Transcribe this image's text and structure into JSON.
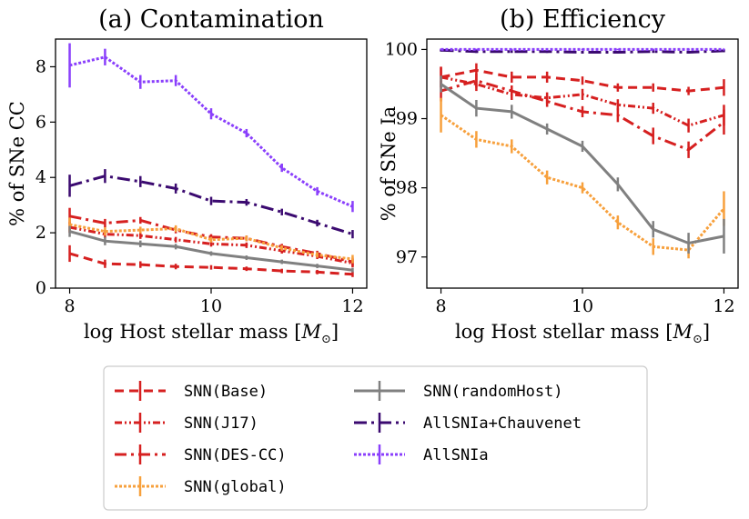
{
  "chart_data": [
    {
      "type": "line",
      "title": "(a) Contamination",
      "xlabel": "log Host stellar mass [",
      "xlabel_unit": "M",
      "xlabel_close": "]",
      "ylabel": "% of SNe CC",
      "xlim": [
        7.8,
        12.2
      ],
      "ylim": [
        0,
        9
      ],
      "xticks": [
        8,
        10,
        12
      ],
      "yticks": [
        0,
        2,
        4,
        6,
        8
      ],
      "x": [
        8,
        8.5,
        9,
        9.5,
        10,
        10.5,
        11,
        11.5,
        12
      ],
      "series": [
        {
          "name": "SNN(Base)",
          "values": [
            1.25,
            0.88,
            0.85,
            0.78,
            0.75,
            0.7,
            0.62,
            0.58,
            0.5
          ],
          "err": [
            0.3,
            0.15,
            0.12,
            0.1,
            0.08,
            0.08,
            0.08,
            0.08,
            0.1
          ]
        },
        {
          "name": "SNN(J17)",
          "values": [
            2.2,
            1.95,
            1.9,
            1.75,
            1.6,
            1.55,
            1.35,
            1.15,
            0.9
          ],
          "err": [
            0.2,
            0.15,
            0.12,
            0.1,
            0.1,
            0.1,
            0.1,
            0.1,
            0.15
          ]
        },
        {
          "name": "SNN(DES-CC)",
          "values": [
            2.6,
            2.35,
            2.45,
            2.1,
            1.85,
            1.8,
            1.5,
            1.25,
            0.95
          ],
          "err": [
            0.3,
            0.15,
            0.12,
            0.12,
            0.1,
            0.1,
            0.1,
            0.1,
            0.15
          ]
        },
        {
          "name": "SNN(global)",
          "values": [
            2.3,
            2.05,
            2.1,
            2.15,
            1.75,
            1.8,
            1.45,
            1.2,
            1.05
          ],
          "err": [
            0.25,
            0.15,
            0.12,
            0.12,
            0.1,
            0.1,
            0.1,
            0.1,
            0.15
          ]
        },
        {
          "name": "SNN(randomHost)",
          "values": [
            2.05,
            1.7,
            1.6,
            1.5,
            1.25,
            1.1,
            0.95,
            0.8,
            0.65
          ],
          "err": [
            0.2,
            0.15,
            0.12,
            0.1,
            0.08,
            0.08,
            0.08,
            0.08,
            0.08
          ]
        },
        {
          "name": "AllSNIa+Chauvenet",
          "values": [
            3.7,
            4.05,
            3.85,
            3.6,
            3.15,
            3.1,
            2.75,
            2.35,
            1.95
          ],
          "err": [
            0.4,
            0.25,
            0.2,
            0.18,
            0.15,
            0.12,
            0.12,
            0.12,
            0.15
          ]
        },
        {
          "name": "AllSNIa",
          "values": [
            8.05,
            8.35,
            7.45,
            7.5,
            6.3,
            5.6,
            4.35,
            3.5,
            2.95
          ],
          "err": [
            0.8,
            0.3,
            0.25,
            0.2,
            0.2,
            0.15,
            0.15,
            0.15,
            0.2
          ]
        }
      ]
    },
    {
      "type": "line",
      "title": "(b) Efficiency",
      "xlabel": "log Host stellar mass [",
      "xlabel_unit": "M",
      "xlabel_close": "]",
      "ylabel": "% of SNe Ia",
      "xlim": [
        7.8,
        12.2
      ],
      "ylim": [
        96.55,
        100.15
      ],
      "xticks": [
        8,
        10,
        12
      ],
      "yticks": [
        97,
        98,
        99,
        100
      ],
      "x": [
        8,
        8.5,
        9,
        9.5,
        10,
        10.5,
        11,
        11.5,
        12
      ],
      "series": [
        {
          "name": "SNN(Base)",
          "values": [
            99.6,
            99.7,
            99.6,
            99.6,
            99.55,
            99.45,
            99.45,
            99.4,
            99.45
          ],
          "err": [
            0.15,
            0.1,
            0.08,
            0.08,
            0.06,
            0.06,
            0.06,
            0.06,
            0.12
          ]
        },
        {
          "name": "SNN(J17)",
          "values": [
            99.6,
            99.5,
            99.35,
            99.3,
            99.35,
            99.2,
            99.15,
            98.9,
            99.05
          ],
          "err": [
            0.15,
            0.1,
            0.08,
            0.08,
            0.08,
            0.08,
            0.08,
            0.1,
            0.15
          ]
        },
        {
          "name": "SNN(DES-CC)",
          "values": [
            99.4,
            99.55,
            99.4,
            99.25,
            99.1,
            99.05,
            98.75,
            98.55,
            98.95
          ],
          "err": [
            0.15,
            0.1,
            0.08,
            0.08,
            0.08,
            0.1,
            0.12,
            0.12,
            0.18
          ]
        },
        {
          "name": "SNN(global)",
          "values": [
            99.05,
            98.7,
            98.6,
            98.15,
            98.0,
            97.5,
            97.15,
            97.1,
            97.7
          ],
          "err": [
            0.25,
            0.12,
            0.1,
            0.1,
            0.08,
            0.1,
            0.12,
            0.12,
            0.25
          ]
        },
        {
          "name": "SNN(randomHost)",
          "values": [
            99.5,
            99.15,
            99.1,
            98.85,
            98.6,
            98.05,
            97.4,
            97.2,
            97.3
          ],
          "err": [
            0.12,
            0.12,
            0.1,
            0.08,
            0.08,
            0.1,
            0.12,
            0.15,
            0.25
          ]
        },
        {
          "name": "AllSNIa+Chauvenet",
          "values": [
            99.99,
            99.97,
            99.97,
            99.97,
            99.96,
            99.96,
            99.97,
            99.96,
            99.98
          ],
          "err": [
            0.02,
            0.02,
            0.02,
            0.02,
            0.02,
            0.02,
            0.02,
            0.02,
            0.02
          ]
        },
        {
          "name": "AllSNIa",
          "values": [
            100.0,
            100.0,
            100.0,
            100.0,
            100.0,
            100.0,
            100.0,
            100.0,
            100.0
          ],
          "err": [
            0.01,
            0.01,
            0.01,
            0.01,
            0.01,
            0.01,
            0.01,
            0.01,
            0.01
          ]
        }
      ]
    }
  ],
  "legend": {
    "placement": "bottom-center",
    "entries": [
      {
        "label": "SNN(Base)",
        "color": "#d62020",
        "dash": "10,6",
        "width": 3,
        "col": 0,
        "row": 0
      },
      {
        "label": "SNN(J17)",
        "color": "#d62020",
        "dash": "8,3,2,3,2,3",
        "width": 3,
        "col": 0,
        "row": 1
      },
      {
        "label": "SNN(DES-CC)",
        "color": "#d62020",
        "dash": "13,5,3,5",
        "width": 3,
        "col": 0,
        "row": 2
      },
      {
        "label": "SNN(global)",
        "color": "#f7a03c",
        "dash": "3,2",
        "width": 3,
        "col": 0,
        "row": 3
      },
      {
        "label": "SNN(randomHost)",
        "color": "#808080",
        "dash": "",
        "width": 3,
        "col": 1,
        "row": 0
      },
      {
        "label": "AllSNIa+Chauvenet",
        "color": "#3b0a70",
        "dash": "14,5,3,5",
        "width": 3,
        "col": 1,
        "row": 1
      },
      {
        "label": "AllSNIa",
        "color": "#8a3ffc",
        "dash": "3,2",
        "width": 3,
        "col": 1,
        "row": 2
      }
    ]
  }
}
